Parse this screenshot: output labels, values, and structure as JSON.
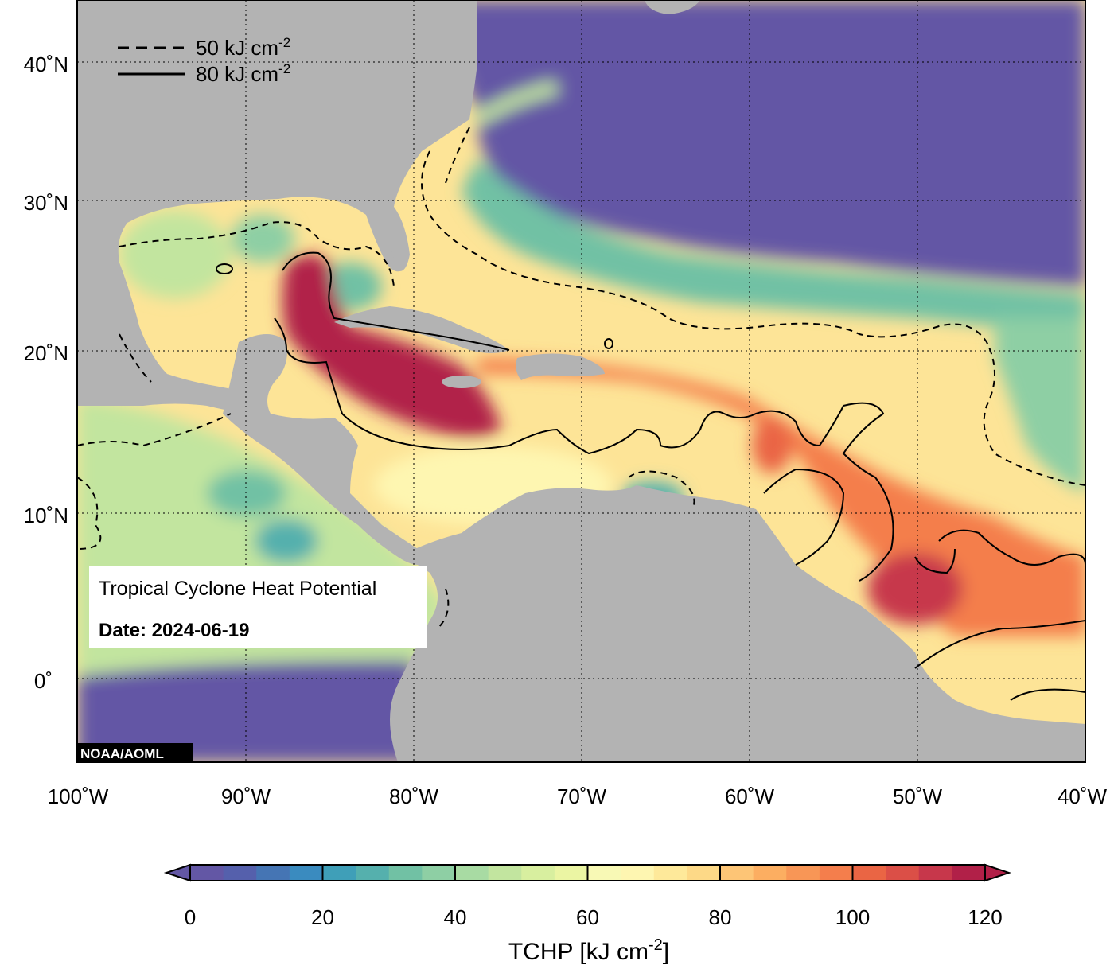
{
  "credit": "NOAA/AOML",
  "info_box": {
    "title": "Tropical Cyclone Heat Potential",
    "date_label": "Date: 2024-06-19"
  },
  "legend": {
    "dashed": {
      "value": "50 kJ cm",
      "exp": "-2"
    },
    "solid": {
      "value": "80 kJ cm",
      "exp": "-2"
    }
  },
  "axes": {
    "lon_labels": [
      "100˚W",
      "90˚W",
      "80˚W",
      "70˚W",
      "60˚W",
      "50˚W",
      "40˚W"
    ],
    "lat_labels": [
      "40˚N",
      "30˚N",
      "20˚N",
      "10˚N",
      "0˚"
    ]
  },
  "colorbar": {
    "title": "TCHP [kJ cm",
    "title_exp": "-2",
    "title_close": "]",
    "ticks": [
      "0",
      "20",
      "40",
      "60",
      "80",
      "100",
      "120"
    ],
    "min": 0,
    "max": 120,
    "step": 5,
    "colors": [
      "#6357a5",
      "#5560ac",
      "#4575b4",
      "#3a8bbf",
      "#3f9fb8",
      "#55b0ad",
      "#71c1a4",
      "#8ecfa4",
      "#a8dba3",
      "#c2e59f",
      "#d8ef9f",
      "#ebf5a3",
      "#f8f9b5",
      "#fef6b1",
      "#fee99a",
      "#fdd987",
      "#fdc576",
      "#fcae61",
      "#f89656",
      "#f47e4c",
      "#ea6544",
      "#db4f47",
      "#c7374b",
      "#b12048"
    ],
    "land": "#b3b3b3",
    "cold_water": "#6357a5"
  }
}
